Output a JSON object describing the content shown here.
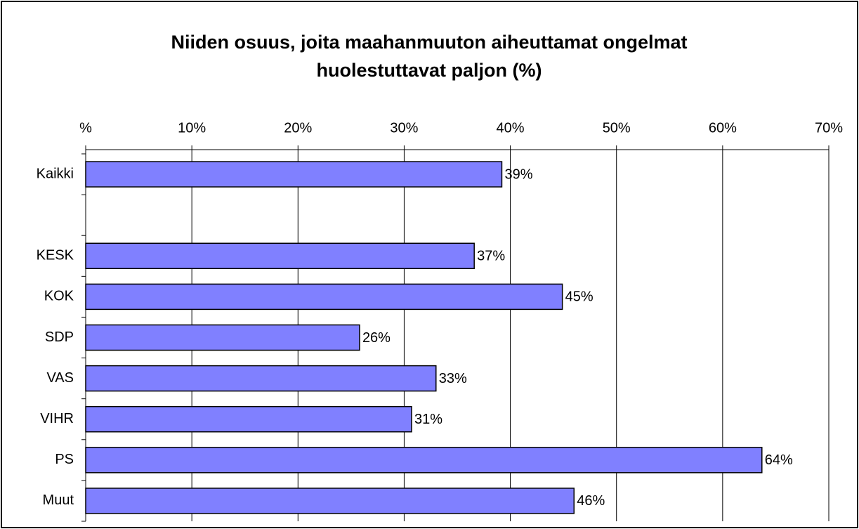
{
  "chart_data": {
    "type": "barh",
    "title": "Niiden osuus, joita maahanmuuton aiheuttamat ongelmat huolestuttavat paljon (%)",
    "categories": [
      "Kaikki",
      null,
      "KESK",
      "KOK",
      "SDP",
      "VAS",
      "VIHR",
      "PS",
      "Muut"
    ],
    "values": [
      39.2,
      null,
      36.6,
      44.9,
      25.8,
      33.0,
      30.7,
      63.7,
      46.0
    ],
    "value_labels": [
      "39%",
      null,
      "37%",
      "45%",
      "26%",
      "33%",
      "31%",
      "64%",
      "46%"
    ],
    "color": "#8080ff",
    "xlim": [
      0,
      70
    ],
    "xticks": [
      {
        "value": 0,
        "label": "%"
      },
      {
        "value": 10,
        "label": "10%"
      },
      {
        "value": 20,
        "label": "20%"
      },
      {
        "value": 30,
        "label": "30%"
      },
      {
        "value": 40,
        "label": "40%"
      },
      {
        "value": 50,
        "label": "50%"
      },
      {
        "value": 60,
        "label": "60%"
      },
      {
        "value": 70,
        "label": "70%"
      }
    ],
    "grid": true
  }
}
